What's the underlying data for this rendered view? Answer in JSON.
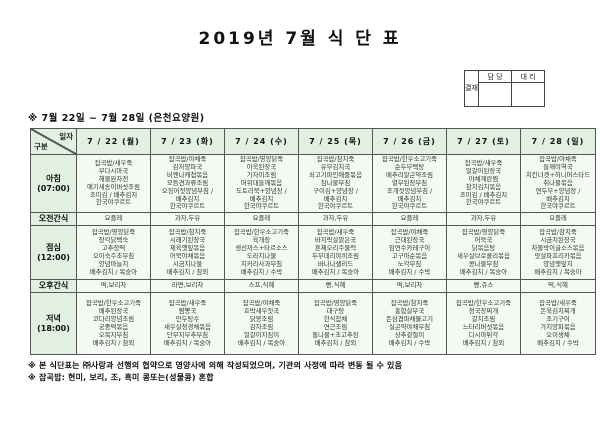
{
  "title": "2019년 7월 식 단 표",
  "approval": {
    "stamp_label": "결재",
    "col1": "담 당",
    "col2": "대 리"
  },
  "subtitle": "※ 7월 22일 ~ 7월 28일 (은천요양원)",
  "table": {
    "corner": {
      "top": "일자",
      "bottom": "구분"
    },
    "days": [
      "7 / 22 (월)",
      "7 / 23 (화)",
      "7 / 24 (수)",
      "7 / 25 (목)",
      "7 / 26 (금)",
      "7 / 27 (토)",
      "7 / 28 (일)"
    ],
    "rows": [
      {
        "id": "breakfast",
        "label": "아침",
        "time": "(07:00)",
        "kind": "meal1",
        "cells": [
          [
            "잡곡밥/새우죽",
            "무다시마국",
            "해물완자전",
            "애기새송이버섯조림",
            "조미김 / 배추김치",
            "한국야쿠르트"
          ],
          [
            "잡곡밥/야채죽",
            "감자양파국",
            "비엔나케첩볶음",
            "모듬견과류조림",
            "오징어젓양념무침 /",
            "배추김치",
            "한국야쿠르트"
          ],
          [
            "잡곡밥/영양닭죽",
            "아욱된장국",
            "가자미조림",
            "머위대들깨볶음",
            "도토리묵+양념장 /",
            "배추김치",
            "한국야쿠르트"
          ],
          [
            "잡곡밥/참치죽",
            "유부김치국",
            "쇠고기파인애플볶음",
            "참나물무침",
            "구이김+양념장 /",
            "배추김치",
            "한국야쿠르트"
          ],
          [
            "잡곡밥/한우소고기죽",
            "순두부백탕",
            "메추리알곤약조림",
            "열무된장무침",
            "조개젓양념무침 /",
            "배추김치",
            "한국야쿠르트"
          ],
          [
            "잡곡밥/새우죽",
            "얼갈이된장국",
            "야채계란찜",
            "참치김치볶음",
            "조미김 / 배추김치",
            "한국야쿠르트"
          ],
          [
            "잡곡밥/야채죽",
            "들깨미역국",
            "치킨너겟+허니머스타드",
            "취나물볶음",
            "연두부+양념장 /",
            "배추김치",
            "한국야쿠르트"
          ]
        ]
      },
      {
        "id": "morning-snack",
        "label": "오전간식",
        "time": "",
        "kind": "snack",
        "cells": [
          [
            "요플레"
          ],
          [
            "과자,두유"
          ],
          [
            "요플레"
          ],
          [
            "과자,두유"
          ],
          [
            "요플레"
          ],
          [
            "과자,두유"
          ],
          [
            "요플레"
          ]
        ]
      },
      {
        "id": "lunch",
        "label": "점심",
        "time": "(12:00)",
        "kind": "meal2",
        "cells": [
          [
            "잡곡밥/영양닭죽",
            "장각닭백숙",
            "고추장떡",
            "오이숙주초무침",
            "양념마늘지",
            "배추김치 / 복숭아"
          ],
          [
            "잡곡밥/참치죽",
            "시래기된장국",
            "제육깻잎볶음",
            "어묵야채볶음",
            "시금치나물",
            "배추김치 / 참외"
          ],
          [
            "잡곡밥/한우소고기죽",
            "육개장",
            "생선까스+타르소스",
            "도라지나물",
            "치커리사과무침",
            "배추김치 / 수박"
          ],
          [
            "잡곡밥/새우죽",
            "바지락살맑은국",
            "훈제오리주물럭",
            "두부데리야끼조림",
            "바나나샐러드",
            "배추김치 / 복숭아"
          ],
          [
            "잡곡밥/야채죽",
            "근대된장국",
            "임연수카레구이",
            "고구마순볶음",
            "노각무침",
            "배추김치 / 수박"
          ],
          [
            "잡곡밥/영양닭죽",
            "어묵국",
            "닭볶음탕",
            "새우살브로콜리볶음",
            "콩나물무침",
            "배추김치 / 복숭아"
          ],
          [
            "잡곡밥/참치죽",
            "시금치된장국",
            "차돌박이굴소스볶음",
            "맛살파프리카볶음",
            "양념깻잎지",
            "배추김치 / 복숭아"
          ]
        ]
      },
      {
        "id": "afternoon-snack",
        "label": "오후간식",
        "time": "",
        "kind": "snack",
        "cells": [
          [
            "떡,보리차"
          ],
          [
            "라면,보리차"
          ],
          [
            "스프,식혜"
          ],
          [
            "빵,식혜"
          ],
          [
            "떡,보리차"
          ],
          [
            "빵,쥬스"
          ],
          [
            "떡,식혜"
          ]
        ]
      },
      {
        "id": "dinner",
        "label": "저녁",
        "time": "(18:00)",
        "kind": "meal3",
        "cells": [
          [
            "잡곡밥/한우소고기죽",
            "배추된장국",
            "코다리양념조림",
            "궁중떡볶음",
            "오복지무침",
            "배추김치 / 참외"
          ],
          [
            "잡곡밥/새우죽",
            "짬뽕국",
            "만두탕수",
            "새우살청경채볶음",
            "단무지부추무침",
            "배추김치 / 복숭아"
          ],
          [
            "잡곡밥/야채죽",
            "호박새우젓국",
            "닭봉조림",
            "감자조림",
            "얼갈이지짐이",
            "배추김치 / 복숭아"
          ],
          [
            "잡곡밥/영양닭죽",
            "대구탕",
            "한식잡채",
            "연근조림",
            "돌나물+초고추장",
            "배추김치 / 참외"
          ],
          [
            "잡곡밥/참치죽",
            "홍합살무국",
            "돈삼겹파채불고기",
            "실곤약야채무침",
            "상추겉절이",
            "배추김치 / 수박"
          ],
          [
            "잡곡밥/한우소고기죽",
            "청국장찌개",
            "갈치조림",
            "느타리버섯볶음",
            "다시마튀각",
            "배추김치 / 참외"
          ],
          [
            "잡곡밥/새우죽",
            "돈육김치찌개",
            "조기구이",
            "가지양파볶음",
            "오이생채",
            "배추김치 / 수박"
          ]
        ]
      }
    ]
  },
  "notes": [
    "※ 본 식단표는 ㈜사랑과 선행의 협약으로 영양사에 의해 작성되었으며, 기관의 사정에 따라 변동 될 수 있음",
    "※ 잡곡밥: 현미, 보리, 조, 흑미 콩또는(성물콩) 혼합"
  ],
  "colors": {
    "header_green": "#e1f0e1",
    "cell_green": "#f3faf3",
    "border": "#555555",
    "text": "#222222"
  }
}
